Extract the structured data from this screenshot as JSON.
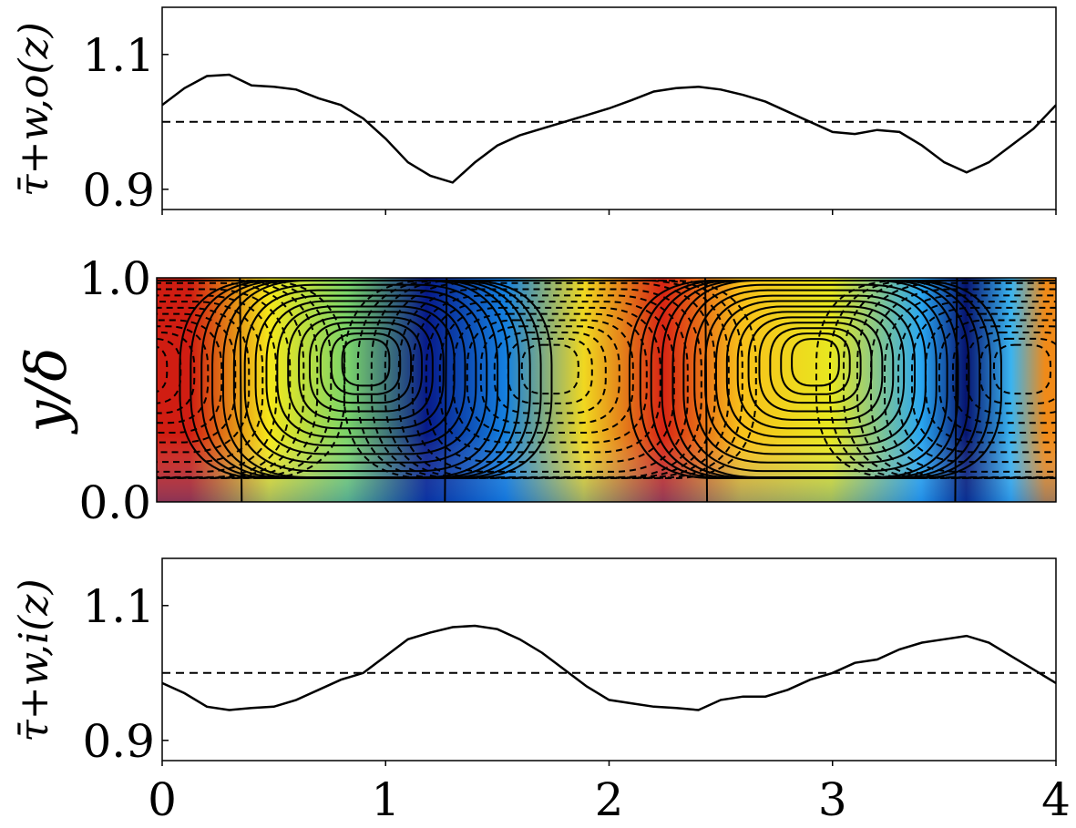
{
  "chart_data": [
    {
      "type": "line",
      "ylabel": "τ̄+w,o(z)",
      "xlim": [
        0,
        4
      ],
      "ylim": [
        0.87,
        1.17
      ],
      "yticks": [
        0.9,
        1.1
      ],
      "ytick_labels": [
        "0.9",
        "1.1"
      ],
      "reference_line": 1.0,
      "reference_style": "dashed",
      "series": [
        {
          "x": [
            0,
            0.1,
            0.2,
            0.3,
            0.4,
            0.5,
            0.6,
            0.7,
            0.8,
            0.9,
            1.0,
            1.1,
            1.2,
            1.3,
            1.4,
            1.5,
            1.6,
            1.7,
            1.8,
            1.9,
            2.0,
            2.1,
            2.2,
            2.3,
            2.4,
            2.5,
            2.6,
            2.7,
            2.8,
            2.9,
            3.0,
            3.1,
            3.2,
            3.3,
            3.4,
            3.5,
            3.6,
            3.7,
            3.8,
            3.9,
            4.0
          ],
          "values": [
            1.025,
            1.05,
            1.068,
            1.07,
            1.054,
            1.052,
            1.048,
            1.035,
            1.025,
            1.005,
            0.975,
            0.94,
            0.92,
            0.91,
            0.94,
            0.965,
            0.98,
            0.99,
            1.0,
            1.01,
            1.02,
            1.032,
            1.045,
            1.05,
            1.052,
            1.048,
            1.04,
            1.03,
            1.015,
            1.0,
            0.985,
            0.982,
            0.988,
            0.985,
            0.965,
            0.94,
            0.925,
            0.94,
            0.965,
            0.99,
            1.025
          ]
        }
      ]
    },
    {
      "type": "heatmap",
      "ylabel": "y/δ",
      "xlim": [
        0,
        4
      ],
      "ylim": [
        0,
        1
      ],
      "yticks": [
        0.0,
        1.0
      ],
      "ytick_labels": [
        "0.0",
        "1.0"
      ],
      "colormap": "jet",
      "vortex_centers": [
        {
          "x": 0.93,
          "y": 0.63,
          "rotation": "positive",
          "line": "solid"
        },
        {
          "x": 1.75,
          "y": 0.6,
          "rotation": "negative",
          "line": "dashed"
        },
        {
          "x": 2.93,
          "y": 0.63,
          "rotation": "positive",
          "line": "solid"
        },
        {
          "x": 3.85,
          "y": 0.6,
          "rotation": "negative",
          "line": "dashed"
        },
        {
          "x": -0.08,
          "y": 0.6,
          "rotation": "negative",
          "line": "dashed"
        }
      ],
      "color_bands": [
        {
          "x": 0.15,
          "color": "#d01d12"
        },
        {
          "x": 0.5,
          "color": "#f5e81a"
        },
        {
          "x": 0.85,
          "color": "#7ad46a"
        },
        {
          "x": 1.2,
          "color": "#071a8a"
        },
        {
          "x": 1.55,
          "color": "#1480e0"
        },
        {
          "x": 1.9,
          "color": "#f0d820"
        },
        {
          "x": 2.25,
          "color": "#d82414"
        },
        {
          "x": 2.6,
          "color": "#f8c01a"
        },
        {
          "x": 3.0,
          "color": "#e8e820"
        },
        {
          "x": 3.4,
          "color": "#29a7f2"
        },
        {
          "x": 3.6,
          "color": "#061470"
        },
        {
          "x": 3.8,
          "color": "#3ab4f0"
        },
        {
          "x": 3.95,
          "color": "#f08a18"
        }
      ]
    },
    {
      "type": "line",
      "ylabel": "τ̄+w,i(z)",
      "xlim": [
        0,
        4
      ],
      "ylim": [
        0.87,
        1.17
      ],
      "yticks": [
        0.9,
        1.1
      ],
      "ytick_labels": [
        "0.9",
        "1.1"
      ],
      "xticks": [
        0,
        1,
        2,
        3,
        4
      ],
      "xtick_labels": [
        "0",
        "1",
        "2",
        "3",
        "4"
      ],
      "reference_line": 1.0,
      "reference_style": "dashed",
      "series": [
        {
          "x": [
            0,
            0.1,
            0.2,
            0.3,
            0.4,
            0.5,
            0.6,
            0.7,
            0.8,
            0.9,
            1.0,
            1.1,
            1.2,
            1.3,
            1.4,
            1.5,
            1.6,
            1.7,
            1.8,
            1.9,
            2.0,
            2.1,
            2.2,
            2.3,
            2.4,
            2.5,
            2.6,
            2.7,
            2.8,
            2.9,
            3.0,
            3.1,
            3.2,
            3.3,
            3.4,
            3.5,
            3.6,
            3.7,
            3.8,
            3.9,
            4.0
          ],
          "values": [
            0.985,
            0.97,
            0.95,
            0.945,
            0.948,
            0.95,
            0.96,
            0.975,
            0.99,
            1.0,
            1.025,
            1.05,
            1.06,
            1.068,
            1.07,
            1.065,
            1.05,
            1.03,
            1.005,
            0.98,
            0.96,
            0.955,
            0.95,
            0.948,
            0.945,
            0.96,
            0.965,
            0.965,
            0.975,
            0.99,
            1.0,
            1.015,
            1.02,
            1.035,
            1.045,
            1.05,
            1.055,
            1.045,
            1.025,
            1.005,
            0.985
          ]
        }
      ]
    }
  ]
}
